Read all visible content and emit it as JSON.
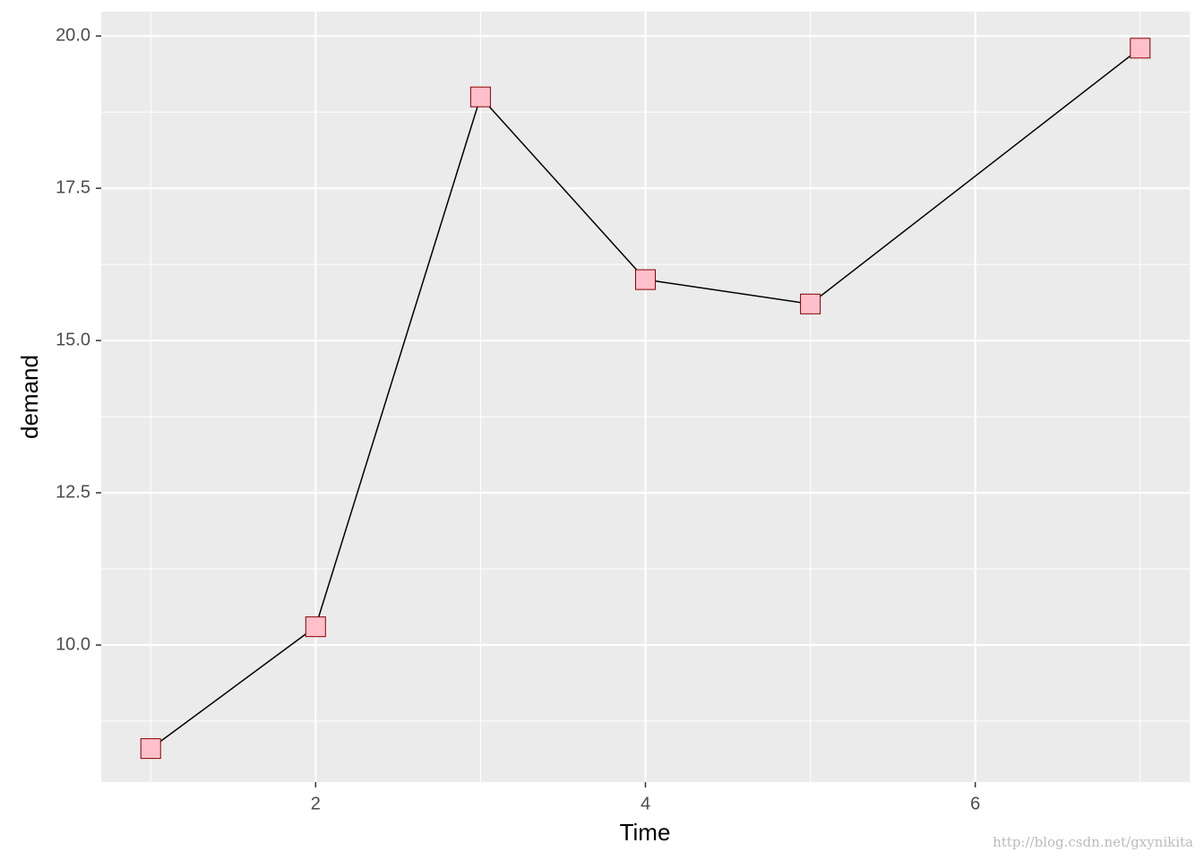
{
  "chart_data": {
    "type": "line",
    "x_label": "Time",
    "y_label": "demand",
    "x": [
      1,
      2,
      3,
      4,
      5,
      7
    ],
    "series": [
      {
        "values": [
          8.3,
          10.3,
          19.0,
          16.0,
          15.6,
          19.8
        ],
        "color": "#000000",
        "marker_fill": "#ffc0cb",
        "marker_stroke": "#8b0000"
      }
    ],
    "xlim": [
      0.7,
      7.3
    ],
    "ylim": [
      7.75,
      20.4
    ],
    "xticks": [
      2,
      4,
      6
    ],
    "yticks": [
      {
        "value": 10,
        "label": "10.0"
      },
      12.5,
      {
        "value": 15,
        "label": "15.0"
      },
      17.5,
      {
        "value": 20,
        "label": "20.0"
      }
    ],
    "grid": true,
    "watermark": "http://blog.csdn.net/gxynikita"
  }
}
